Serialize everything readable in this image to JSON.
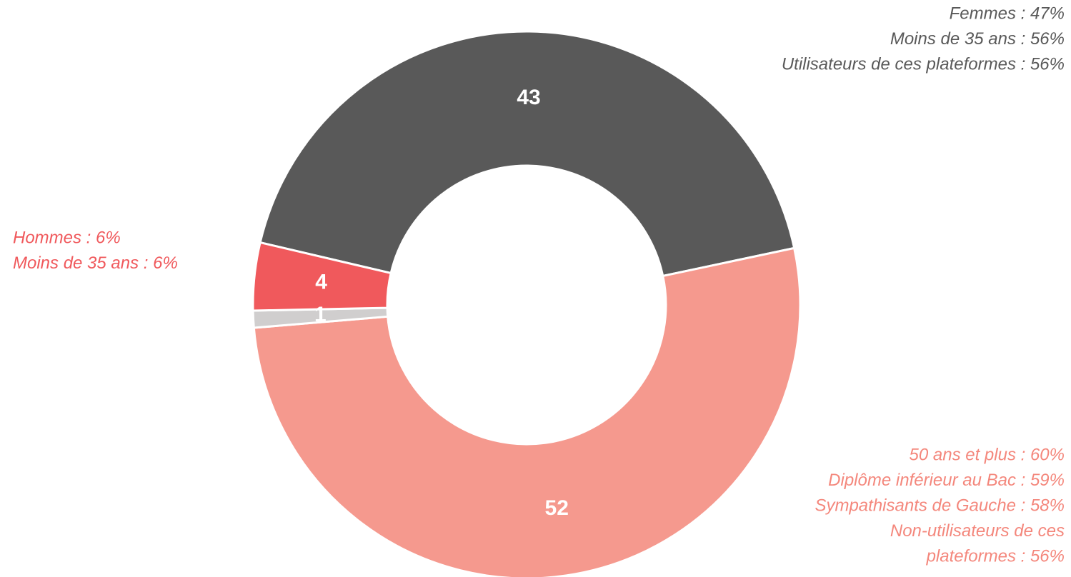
{
  "chart_data": {
    "type": "donut",
    "series": [
      {
        "values": [
          43,
          52,
          1,
          4
        ],
        "colors": [
          "#595959",
          "#f5998e",
          "#d0cece",
          "#f0595c"
        ]
      }
    ],
    "annotations": [
      {
        "color": "#595959",
        "lines": [
          "Femmes : 47%",
          "Moins de 35 ans : 56%",
          "Utilisateurs de ces plateformes : 56%"
        ]
      },
      {
        "color": "#f0595c",
        "lines": [
          "Hommes : 6%",
          "Moins de 35 ans : 6%"
        ]
      },
      {
        "color": "#f4877c",
        "lines": [
          "50 ans et plus : 60%",
          "Diplôme inférieur au Bac : 59%",
          "Sympathisants de Gauche : 58%",
          "Non-utilisateurs de ces",
          "plateformes : 56%"
        ]
      }
    ]
  }
}
